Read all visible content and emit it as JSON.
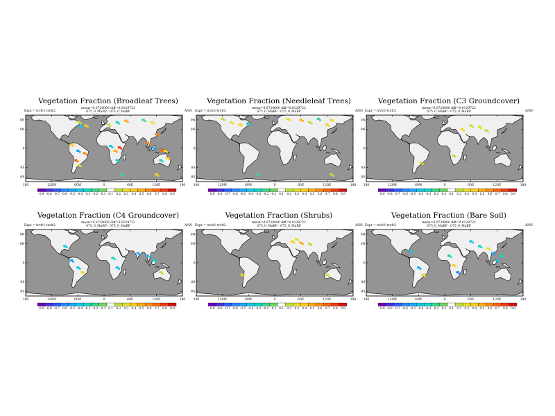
{
  "figure": {
    "panels": [
      {
        "title": "Vegetation Fraction (Broadleaf Trees)",
        "meanline": "mean=0.0720000 diff=0.0129722",
        "expt": "Expt = trvfr1-trvfr2",
        "model": "075_0_MaBP - 075_0_MaBP",
        "season": "ANN"
      },
      {
        "title": "Vegetation Fraction (Needleleaf Trees)",
        "meanline": "mean=0.0720000 diff=0.0129722",
        "expt": "Expt = trvfr1-trvfr2",
        "model": "075_0_MaBP - 075_0_MaBP",
        "season": "ANN"
      },
      {
        "title": "Vegetation Fraction (C3 Groundcover)",
        "meanline": "mean=0.0720000 diff=0.0129722",
        "expt": "Expt = trvfr1-trvfr2",
        "model": "075_0_MaBP - 075_0_MaBP",
        "season": "ANN"
      },
      {
        "title": "Vegetation Fraction (C4 Groundcover)",
        "meanline": "mean=0.0720000 diff=0.0129722",
        "expt": "Expt = trvfr1-trvfr2",
        "model": "075_0_MaBP - 075_0_MaBP",
        "season": "ANN"
      },
      {
        "title": "Vegetation Fraction (Shrubs)",
        "meanline": "mean=0.0720000 diff=0.0129722",
        "expt": "Expt = trvfr1-trvfr2",
        "model": "075_0_MaBP - 075_0_MaBP",
        "season": "ANN"
      },
      {
        "title": "Vegetation Fraction (Bare Soil)",
        "meanline": "mean=0.0720000 diff=0.0129722",
        "expt": "Expt = trvfr1-trvfr2",
        "model": "075_0_MaBP - 075_0_MaBP",
        "season": "ANN"
      }
    ]
  },
  "chart_data": [
    {
      "type": "heatmap",
      "title": "Vegetation Fraction (Broadleaf Trees)",
      "xticks": [
        "180",
        "120W",
        "60W",
        "0",
        "60E",
        "120E",
        "180"
      ],
      "yticks": [
        "60N",
        "40N",
        "0",
        "40S",
        "60S"
      ],
      "colorbar": [
        "-0.9",
        "-0.8",
        "-0.7",
        "-0.6",
        "-0.5",
        "-0.4",
        "-0.3",
        "-0.2",
        "-0.1",
        "0.1",
        "0.2",
        "0.3",
        "0.4",
        "0.5",
        "0.6",
        "0.7",
        "0.8",
        "0.9"
      ],
      "anomalies": [
        {
          "lon": -58,
          "lat": 55,
          "value": 0.3
        },
        {
          "lon": -55,
          "lat": 48,
          "value": -0.4
        },
        {
          "lon": -42,
          "lat": 48,
          "value": 0.4
        },
        {
          "lon": 10,
          "lat": 50,
          "value": 0.2
        },
        {
          "lon": 30,
          "lat": 55,
          "value": -0.3
        },
        {
          "lon": 50,
          "lat": 58,
          "value": 0.5
        },
        {
          "lon": 90,
          "lat": 60,
          "value": -0.2
        },
        {
          "lon": 110,
          "lat": 55,
          "value": 0.3
        },
        {
          "lon": 120,
          "lat": 30,
          "value": 0.6
        },
        {
          "lon": -75,
          "lat": 8,
          "value": 0.4
        },
        {
          "lon": -60,
          "lat": -5,
          "value": -0.5
        },
        {
          "lon": -45,
          "lat": -10,
          "value": 0.6
        },
        {
          "lon": -65,
          "lat": -25,
          "value": 0.7
        },
        {
          "lon": -58,
          "lat": -35,
          "value": 0.3
        },
        {
          "lon": 15,
          "lat": 5,
          "value": -0.4
        },
        {
          "lon": 25,
          "lat": -5,
          "value": 0.5
        },
        {
          "lon": 35,
          "lat": 2,
          "value": 0.8
        },
        {
          "lon": 30,
          "lat": -25,
          "value": -0.3
        },
        {
          "lon": 100,
          "lat": 12,
          "value": 0.6
        },
        {
          "lon": 115,
          "lat": 0,
          "value": -0.5
        },
        {
          "lon": 130,
          "lat": -3,
          "value": 0.7
        },
        {
          "lon": 140,
          "lat": -5,
          "value": 0.3
        },
        {
          "lon": 130,
          "lat": -25,
          "value": -0.3
        },
        {
          "lon": 145,
          "lat": -20,
          "value": 0.4
        },
        {
          "lon": 120,
          "lat": -55,
          "value": 0.3
        },
        {
          "lon": 40,
          "lat": -55,
          "value": -0.2
        }
      ]
    },
    {
      "type": "heatmap",
      "title": "Vegetation Fraction (Needleleaf Trees)",
      "xticks": [
        "180",
        "120W",
        "60W",
        "0",
        "60E",
        "120E",
        "180"
      ],
      "yticks": [
        "60N",
        "40N",
        "0",
        "40S",
        "60S"
      ],
      "colorbar": [
        "-0.9",
        "-0.8",
        "-0.7",
        "-0.6",
        "-0.5",
        "-0.4",
        "-0.3",
        "-0.2",
        "-0.1",
        "0.1",
        "0.2",
        "0.3",
        "0.4",
        "0.5",
        "0.6",
        "0.7",
        "0.8",
        "0.9"
      ],
      "anomalies": [
        {
          "lon": -120,
          "lat": 62,
          "value": 0.2
        },
        {
          "lon": -100,
          "lat": 55,
          "value": 0.3
        },
        {
          "lon": -80,
          "lat": 50,
          "value": 0.4
        },
        {
          "lon": -62,
          "lat": 52,
          "value": -0.3
        },
        {
          "lon": 30,
          "lat": 62,
          "value": 0.3
        },
        {
          "lon": 60,
          "lat": 60,
          "value": 0.5
        },
        {
          "lon": 80,
          "lat": 55,
          "value": 0.2
        },
        {
          "lon": 100,
          "lat": 62,
          "value": -0.2
        },
        {
          "lon": 130,
          "lat": 60,
          "value": 0.3
        },
        {
          "lon": 120,
          "lat": 50,
          "value": 0.4
        },
        {
          "lon": 130,
          "lat": -55,
          "value": 0.2
        },
        {
          "lon": -40,
          "lat": -55,
          "value": -0.2
        }
      ]
    },
    {
      "type": "heatmap",
      "title": "Vegetation Fraction (C3 Groundcover)",
      "xticks": [
        "180",
        "120W",
        "60W",
        "0",
        "60E",
        "120E",
        "180"
      ],
      "yticks": [
        "60N",
        "40N",
        "0",
        "40S",
        "60S"
      ],
      "colorbar": [
        "-0.9",
        "-0.8",
        "-0.7",
        "-0.6",
        "-0.5",
        "-0.4",
        "-0.3",
        "-0.2",
        "-0.1",
        "0.1",
        "0.2",
        "0.3",
        "0.4",
        "0.5",
        "0.6",
        "0.7",
        "0.8",
        "0.9"
      ],
      "anomalies": [
        {
          "lon": 40,
          "lat": 40,
          "value": 0.3
        },
        {
          "lon": 60,
          "lat": 48,
          "value": 0.2
        },
        {
          "lon": 80,
          "lat": 45,
          "value": 0.3
        },
        {
          "lon": 95,
          "lat": 38,
          "value": 0.2
        },
        {
          "lon": 20,
          "lat": -15,
          "value": 0.2
        },
        {
          "lon": -55,
          "lat": -30,
          "value": 0.3
        }
      ]
    },
    {
      "type": "heatmap",
      "title": "Vegetation Fraction (C4 Groundcover)",
      "xticks": [
        "180",
        "120W",
        "60W",
        "0",
        "60E",
        "120E",
        "180"
      ],
      "yticks": [
        "60N",
        "40N",
        "0",
        "40S",
        "60S"
      ],
      "colorbar": [
        "-0.9",
        "-0.8",
        "-0.7",
        "-0.6",
        "-0.5",
        "-0.4",
        "-0.3",
        "-0.2",
        "-0.1",
        "0.1",
        "0.2",
        "0.3",
        "0.4",
        "0.5",
        "0.6",
        "0.7",
        "0.8",
        "0.9"
      ],
      "anomalies": [
        {
          "lon": -90,
          "lat": 35,
          "value": -0.4
        },
        {
          "lon": -75,
          "lat": 5,
          "value": -0.5
        },
        {
          "lon": -60,
          "lat": -10,
          "value": -0.4
        },
        {
          "lon": -50,
          "lat": -20,
          "value": 0.3
        },
        {
          "lon": 20,
          "lat": 10,
          "value": -0.3
        },
        {
          "lon": 30,
          "lat": -10,
          "value": -0.4
        },
        {
          "lon": 78,
          "lat": 20,
          "value": -0.5
        },
        {
          "lon": 100,
          "lat": 15,
          "value": -0.4
        },
        {
          "lon": 115,
          "lat": 5,
          "value": -0.3
        },
        {
          "lon": 130,
          "lat": -20,
          "value": 0.2
        }
      ]
    },
    {
      "type": "heatmap",
      "title": "Vegetation Fraction (Shrubs)",
      "xticks": [
        "180",
        "120W",
        "60W",
        "0",
        "60E",
        "120E",
        "180"
      ],
      "yticks": [
        "60N",
        "40N",
        "0",
        "40S",
        "60S"
      ],
      "colorbar": [
        "-0.9",
        "-0.8",
        "-0.7",
        "-0.6",
        "-0.5",
        "-0.4",
        "-0.3",
        "-0.2",
        "-0.1",
        "0.1",
        "0.2",
        "0.3",
        "0.4",
        "0.5",
        "0.6",
        "0.7",
        "0.8",
        "0.9"
      ],
      "anomalies": [
        {
          "lon": -75,
          "lat": -25,
          "value": 0.3
        },
        {
          "lon": 40,
          "lat": 45,
          "value": 0.4
        },
        {
          "lon": 50,
          "lat": 50,
          "value": 0.3
        },
        {
          "lon": 60,
          "lat": 42,
          "value": 0.5
        },
        {
          "lon": 80,
          "lat": 40,
          "value": 0.2
        },
        {
          "lon": 120,
          "lat": -25,
          "value": 0.2
        }
      ]
    },
    {
      "type": "heatmap",
      "title": "Vegetation Fraction (Bare Soil)",
      "xticks": [
        "180",
        "120W",
        "60W",
        "0",
        "60E",
        "120E",
        "180"
      ],
      "yticks": [
        "60N",
        "40N",
        "0",
        "40S",
        "60S"
      ],
      "colorbar": [
        "-0.9",
        "-0.8",
        "-0.7",
        "-0.6",
        "-0.5",
        "-0.4",
        "-0.3",
        "-0.2",
        "-0.1",
        "0.1",
        "0.2",
        "0.3",
        "0.4",
        "0.5",
        "0.6",
        "0.7",
        "0.8",
        "0.9"
      ],
      "anomalies": [
        {
          "lon": -80,
          "lat": 25,
          "value": -0.4
        },
        {
          "lon": -60,
          "lat": -10,
          "value": -0.5
        },
        {
          "lon": -50,
          "lat": -25,
          "value": 0.3
        },
        {
          "lon": 10,
          "lat": 15,
          "value": -0.3
        },
        {
          "lon": 20,
          "lat": -5,
          "value": 0.4
        },
        {
          "lon": 30,
          "lat": -20,
          "value": -0.6
        },
        {
          "lon": 60,
          "lat": 45,
          "value": -0.4
        },
        {
          "lon": 80,
          "lat": 35,
          "value": -0.3
        },
        {
          "lon": 100,
          "lat": 30,
          "value": 0.3
        },
        {
          "lon": 110,
          "lat": 20,
          "value": -0.5
        },
        {
          "lon": 120,
          "lat": 5,
          "value": -0.4
        },
        {
          "lon": 130,
          "lat": 15,
          "value": -0.3
        }
      ]
    }
  ],
  "palette": {
    "ocean": "#949494",
    "land": "#f0f0f0",
    "colorbar_colors": [
      "#6b00b5",
      "#4a2ee0",
      "#2c5bff",
      "#2a86ff",
      "#1aa7ff",
      "#11c6e8",
      "#14d6c1",
      "#39d88a",
      "#6fd65a",
      "#ffffff",
      "#b9df3c",
      "#e7de2a",
      "#ffcc1d",
      "#ffab14",
      "#ff8a10",
      "#ff640d",
      "#f53a10",
      "#d01515"
    ]
  }
}
